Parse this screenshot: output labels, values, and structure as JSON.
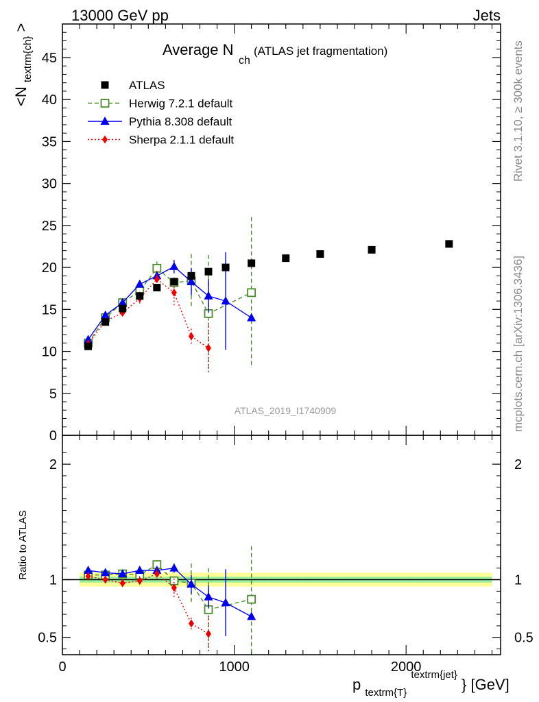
{
  "header": {
    "left": "13000 GeV pp",
    "right": "Jets"
  },
  "side_labels": {
    "rivet": "Rivet 3.1.10, ≥ 300k events",
    "mcplots": "mcplots.cern.ch [arXiv:1306.3436]"
  },
  "chart_data": {
    "type": "scatter",
    "title_main": "Average N",
    "title_sub": "ch",
    "title_tail": "(ATLAS jet fragmentation)",
    "analysis_id": "ATLAS_2019_I1740909",
    "ylabel_main": "<N",
    "ylabel_sub": "textrm{ch}",
    "ylabel_tail": ">",
    "ratio_ylabel": "Ratio to ATLAS",
    "xlabel_main": "p",
    "xlabel_sub": "textrm{T}",
    "xlabel_sup": "textrm{jet}",
    "xlabel_tail": "} [GeV]",
    "xlim": [
      0,
      2550
    ],
    "ylim": [
      0,
      49
    ],
    "ratio_ylim": [
      0.35,
      2.25
    ],
    "x_ticks": [
      0,
      1000,
      2000
    ],
    "x_tick_labels": [
      "0",
      "1000",
      "2000"
    ],
    "y_ticks": [
      0,
      5,
      10,
      15,
      20,
      25,
      30,
      35,
      40,
      45
    ],
    "y_tick_labels": [
      "0",
      "5",
      "10",
      "15",
      "20",
      "25",
      "30",
      "35",
      "40",
      "45"
    ],
    "ratio_ticks": [
      0.5,
      1,
      2
    ],
    "ratio_tick_labels": [
      "0.5",
      "1",
      "2"
    ],
    "legend_position": "top-left",
    "data": {
      "name": "ATLAS",
      "color": "#000000",
      "x": [
        150,
        250,
        350,
        450,
        550,
        650,
        750,
        850,
        950,
        1100,
        1300,
        1500,
        1800,
        2250
      ],
      "y": [
        10.6,
        13.5,
        15.1,
        16.6,
        17.6,
        18.3,
        19.0,
        19.5,
        20.0,
        20.5,
        21.1,
        21.6,
        22.1,
        22.8
      ],
      "xerr": [
        50,
        50,
        50,
        50,
        50,
        50,
        50,
        50,
        50,
        100,
        100,
        100,
        200,
        250
      ]
    },
    "series": [
      {
        "name": "Herwig 7.2.1 default",
        "color": "#4b8c2c",
        "dash": "6,4",
        "marker": "open-square",
        "x": [
          150,
          250,
          350,
          450,
          550,
          650,
          750,
          850,
          1100
        ],
        "y": [
          11.0,
          14.0,
          15.8,
          17.2,
          19.9,
          18.2,
          18.4,
          14.5,
          17.0
        ],
        "err": [
          0.2,
          0.3,
          0.3,
          0.4,
          0.8,
          0.6,
          3.2,
          7.0,
          9.0
        ],
        "ratio": [
          1.04,
          1.04,
          1.05,
          1.04,
          1.13,
          0.99,
          0.97,
          0.74,
          0.83
        ],
        "ratio_err": [
          0.02,
          0.02,
          0.02,
          0.03,
          0.04,
          0.03,
          0.17,
          0.36,
          0.46
        ]
      },
      {
        "name": "Pythia 8.308 default",
        "color": "#0000ee",
        "dash": "",
        "marker": "triangle",
        "x": [
          150,
          250,
          350,
          450,
          550,
          650,
          750,
          850,
          950,
          1100
        ],
        "y": [
          11.4,
          14.3,
          15.8,
          18.0,
          19.0,
          20.1,
          18.3,
          16.6,
          16.0,
          14.0
        ],
        "err": [
          0.2,
          0.3,
          0.4,
          0.4,
          0.5,
          0.8,
          1.6,
          2.0,
          5.8,
          0
        ],
        "ratio": [
          1.08,
          1.06,
          1.05,
          1.08,
          1.08,
          1.1,
          0.96,
          0.85,
          0.8,
          0.68
        ],
        "ratio_err": [
          0.02,
          0.02,
          0.02,
          0.02,
          0.03,
          0.04,
          0.08,
          0.1,
          0.29,
          0
        ]
      },
      {
        "name": "Sherpa 2.1.1 default",
        "color": "#ee0000",
        "dash": "2,3",
        "marker": "diamond",
        "x": [
          150,
          250,
          350,
          450,
          550,
          650,
          750,
          850
        ],
        "y": [
          10.9,
          13.6,
          14.6,
          16.3,
          18.6,
          17.0,
          11.8,
          10.4
        ],
        "err": [
          0.3,
          0.3,
          0.4,
          0.8,
          1.0,
          1.5,
          0.9,
          3.0
        ],
        "ratio": [
          1.03,
          1.0,
          0.97,
          0.99,
          1.05,
          0.93,
          0.62,
          0.53
        ],
        "ratio_err": [
          0.02,
          0.02,
          0.03,
          0.04,
          0.05,
          0.08,
          0.05,
          0.16
        ]
      }
    ]
  }
}
